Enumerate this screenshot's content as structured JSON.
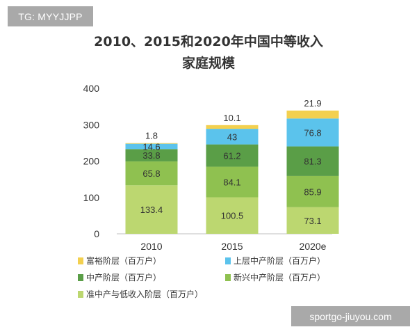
{
  "watermark_top": "TG: MYYJJPP",
  "watermark_bottom": "sportgo-jiuyou.com",
  "chart_data": {
    "type": "bar",
    "stacked": true,
    "title_lines": [
      "2010、2015和2020年中国中等收入",
      "家庭规模"
    ],
    "categories": [
      "2010",
      "2015",
      "2020e"
    ],
    "ylim": [
      0,
      400
    ],
    "yticks": [
      0,
      100,
      200,
      300,
      400
    ],
    "grid": false,
    "legend_position": "bottom",
    "series": [
      {
        "name": "准中产与低收入阶层（百万户）",
        "color": "#bcd770",
        "values": [
          133.4,
          100.5,
          73.1
        ],
        "labels": [
          "133.4",
          "100.5",
          "73.1"
        ]
      },
      {
        "name": "新兴中产阶层（百万户）",
        "color": "#8fc150",
        "values": [
          65.8,
          84.1,
          85.9
        ],
        "labels": [
          "65.8",
          "84.1",
          "85.9"
        ]
      },
      {
        "name": "中产阶层（百万户）",
        "color": "#5a9e47",
        "values": [
          33.8,
          61.2,
          81.3
        ],
        "labels": [
          "33.8",
          "61.2",
          "81.3"
        ]
      },
      {
        "name": "上层中产阶层（百万户）",
        "color": "#5bc3ec",
        "values": [
          14.6,
          43,
          76.8
        ],
        "labels": [
          "14.6",
          "43",
          "76.8"
        ]
      },
      {
        "name": "富裕阶层（百万户）",
        "color": "#f3d04f",
        "values": [
          1.8,
          10.1,
          21.9
        ],
        "labels": [
          "1.8",
          "10.1",
          "21.9"
        ]
      }
    ]
  },
  "legend": [
    {
      "label": "富裕阶层（百万户）",
      "color": "#f3d04f"
    },
    {
      "label": "上层中产阶层（百万户）",
      "color": "#5bc3ec"
    },
    {
      "label": "中产阶层（百万户）",
      "color": "#5a9e47"
    },
    {
      "label": "新兴中产阶层（百万户）",
      "color": "#8fc150"
    },
    {
      "label": "准中产与低收入阶层（百万户）",
      "color": "#bcd770"
    }
  ]
}
